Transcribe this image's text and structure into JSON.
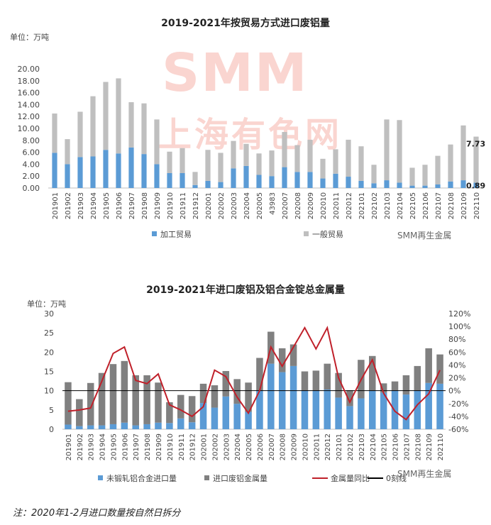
{
  "chart_data": [
    {
      "type": "bar",
      "stacked": true,
      "title": "2019-2021年按贸易方式进口废铝量",
      "unit": "单位：万吨",
      "ylim": [
        0,
        20
      ],
      "yticks": [
        "20.00",
        "18.00",
        "16.00",
        "14.00",
        "12.00",
        "10.00",
        "8.00",
        "6.00",
        "4.00",
        "2.00",
        "0.00"
      ],
      "categories": [
        "201901",
        "201902",
        "201903",
        "201904",
        "201905",
        "201906",
        "201907",
        "201908",
        "201909",
        "201910",
        "201911",
        "201912",
        "202001",
        "202002",
        "202003",
        "202004",
        "202005",
        "43983",
        "202007",
        "202008",
        "202009",
        "202010",
        "202011",
        "202012",
        "202101",
        "202102",
        "202103",
        "202104",
        "202105",
        "202106",
        "202107",
        "202108",
        "202109",
        "202110"
      ],
      "series": [
        {
          "name": "加工贸易",
          "color": "#5b9bd5",
          "values": [
            5.9,
            4.0,
            5.2,
            5.3,
            6.4,
            5.8,
            6.8,
            5.7,
            4.0,
            2.5,
            2.5,
            0.5,
            1.2,
            1.0,
            3.3,
            3.7,
            2.2,
            2.0,
            3.5,
            2.7,
            2.7,
            1.6,
            2.4,
            1.9,
            1.2,
            0.8,
            1.3,
            0.9,
            0.4,
            0.4,
            0.6,
            1.1,
            1.3,
            0.89
          ]
        },
        {
          "name": "一般贸易",
          "color": "#bfbfbf",
          "values": [
            6.6,
            4.2,
            7.6,
            10.1,
            11.4,
            12.6,
            7.6,
            8.5,
            7.5,
            3.6,
            4.2,
            2.2,
            5.2,
            4.9,
            4.6,
            3.7,
            3.6,
            4.3,
            5.9,
            4.5,
            5.4,
            3.3,
            4.1,
            6.2,
            5.8,
            3.1,
            10.2,
            10.5,
            3.0,
            3.5,
            4.8,
            6.2,
            9.2,
            7.73
          ]
        }
      ],
      "annotations": [
        "7.73",
        "0.89"
      ],
      "watermark_logo": "SMM",
      "watermark_cn": "上海有色网",
      "brand": "SMM再生金属"
    },
    {
      "type": "bar+line",
      "stacked": true,
      "title": "2019-2021年进口废铝及铝合金锭总金属量",
      "unit": "单位：万吨",
      "ylim": [
        0,
        30
      ],
      "yticks": [
        "30",
        "25",
        "20",
        "15",
        "10",
        "5",
        "0"
      ],
      "y2lim": [
        -60,
        120
      ],
      "y2ticks": [
        "120%",
        "100%",
        "80%",
        "60%",
        "40%",
        "20%",
        "0%",
        "-20%",
        "-40%",
        "-60%"
      ],
      "categories": [
        "201901",
        "201902",
        "201903",
        "201904",
        "201905",
        "201906",
        "201907",
        "201908",
        "201909",
        "201910",
        "201911",
        "201912",
        "202001",
        "202002",
        "202003",
        "202004",
        "202005",
        "202006",
        "202007",
        "202008",
        "202009",
        "202010",
        "202011",
        "202012",
        "202101",
        "202102",
        "202103",
        "202104",
        "202105",
        "202106",
        "202107",
        "202108",
        "202109",
        "202110"
      ],
      "series": [
        {
          "name": "未锻轧铝合金进口量",
          "color": "#5b9bd5",
          "values": [
            1.2,
            0.8,
            1.0,
            1.0,
            1.3,
            1.7,
            1.0,
            1.3,
            1.7,
            1.6,
            2.8,
            1.8,
            6.8,
            5.6,
            8.5,
            6.6,
            4.5,
            10.0,
            17.0,
            14.8,
            16.4,
            10.0,
            10.0,
            10.3,
            8.2,
            6.0,
            8.0,
            10.0,
            9.5,
            10.0,
            9.0,
            10.0,
            12.0,
            11.8
          ]
        },
        {
          "name": "进口废铝金属量",
          "color": "#808080",
          "values": [
            11.0,
            7.0,
            11.0,
            13.6,
            15.6,
            16.0,
            13.0,
            12.7,
            10.4,
            5.4,
            6.1,
            6.8,
            5.0,
            5.8,
            6.6,
            6.4,
            7.6,
            8.5,
            8.3,
            6.2,
            5.6,
            5.0,
            5.2,
            6.7,
            6.4,
            4.1,
            10.0,
            9.0,
            2.4,
            2.4,
            5.0,
            6.4,
            9.0,
            7.6
          ]
        },
        {
          "name": "金属量同比",
          "color": "#c0202a",
          "line": true,
          "values": [
            -32,
            -30,
            -27,
            15,
            58,
            68,
            16,
            11,
            26,
            -22,
            -30,
            -40,
            -25,
            32,
            22,
            -10,
            -35,
            0,
            68,
            38,
            68,
            98,
            65,
            98,
            20,
            -18,
            17,
            48,
            -4,
            -32,
            -45,
            -22,
            -5,
            32
          ]
        },
        {
          "name": "0刻线",
          "color": "#000000",
          "zero_line": true
        }
      ],
      "brand": "SMM再生金属"
    }
  ],
  "note": "注：2020年1-2月进口数量按自然日拆分"
}
